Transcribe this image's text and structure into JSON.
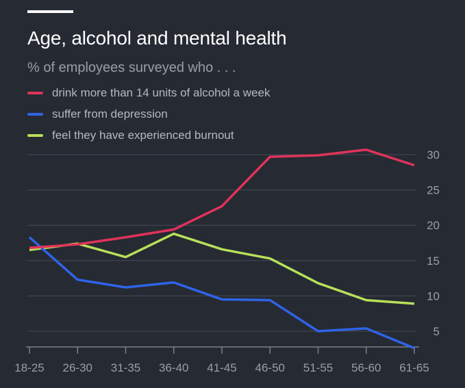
{
  "chart_data": {
    "type": "line",
    "title": "Age, alcohol and mental health",
    "subtitle": "% of employees surveyed who . . .",
    "categories": [
      "18-25",
      "26-30",
      "31-35",
      "36-40",
      "41-45",
      "46-50",
      "51-55",
      "56-60",
      "61-65"
    ],
    "series": [
      {
        "name": "drink more than 14 units of alcohol a week",
        "color": "#e0335a",
        "values": [
          16.8,
          17.3,
          18.3,
          19.4,
          22.7,
          29.7,
          29.9,
          30.7,
          28.5
        ]
      },
      {
        "name": "suffer from depression",
        "color": "#2f64e8",
        "values": [
          18.3,
          12.3,
          11.2,
          11.9,
          9.5,
          9.4,
          5.0,
          5.4,
          2.6
        ]
      },
      {
        "name": "feel they have experienced burnout",
        "color": "#b8e05a",
        "values": [
          16.5,
          17.4,
          15.5,
          18.8,
          16.6,
          15.3,
          11.8,
          9.4,
          8.9
        ]
      }
    ],
    "yticks": [
      5,
      10,
      15,
      20,
      25,
      30
    ],
    "ylim": [
      2.5,
      30
    ],
    "xlabel": "",
    "ylabel": "",
    "grid": true,
    "legend": "top-left"
  },
  "colors": {
    "background": "#262a33",
    "grid": "#474b55",
    "axis": "#7b7f88",
    "tick_text": "#9b9ea6"
  }
}
